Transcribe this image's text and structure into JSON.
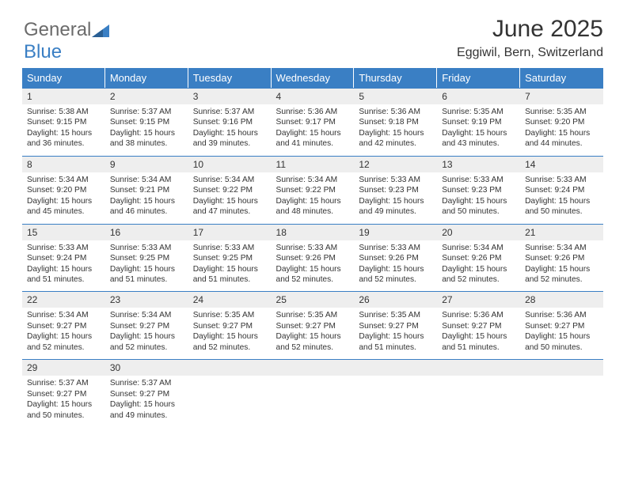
{
  "logo": {
    "text1": "General",
    "text2": "Blue"
  },
  "title": "June 2025",
  "subtitle": "Eggiwil, Bern, Switzerland",
  "colors": {
    "header_bg": "#3a7fc4",
    "header_text": "#ffffff",
    "daynum_bg": "#eeeeee",
    "border": "#3a7fc4",
    "body_text": "#333333",
    "logo_grey": "#6b6b6b"
  },
  "typography": {
    "title_fontsize": 30,
    "subtitle_fontsize": 16,
    "header_fontsize": 13,
    "daynum_fontsize": 12,
    "detail_fontsize": 10.2
  },
  "calendar": {
    "type": "table",
    "day_headers": [
      "Sunday",
      "Monday",
      "Tuesday",
      "Wednesday",
      "Thursday",
      "Friday",
      "Saturday"
    ],
    "weeks": [
      [
        {
          "n": "1",
          "sr": "5:38 AM",
          "ss": "9:15 PM",
          "dl": "15 hours and 36 minutes."
        },
        {
          "n": "2",
          "sr": "5:37 AM",
          "ss": "9:15 PM",
          "dl": "15 hours and 38 minutes."
        },
        {
          "n": "3",
          "sr": "5:37 AM",
          "ss": "9:16 PM",
          "dl": "15 hours and 39 minutes."
        },
        {
          "n": "4",
          "sr": "5:36 AM",
          "ss": "9:17 PM",
          "dl": "15 hours and 41 minutes."
        },
        {
          "n": "5",
          "sr": "5:36 AM",
          "ss": "9:18 PM",
          "dl": "15 hours and 42 minutes."
        },
        {
          "n": "6",
          "sr": "5:35 AM",
          "ss": "9:19 PM",
          "dl": "15 hours and 43 minutes."
        },
        {
          "n": "7",
          "sr": "5:35 AM",
          "ss": "9:20 PM",
          "dl": "15 hours and 44 minutes."
        }
      ],
      [
        {
          "n": "8",
          "sr": "5:34 AM",
          "ss": "9:20 PM",
          "dl": "15 hours and 45 minutes."
        },
        {
          "n": "9",
          "sr": "5:34 AM",
          "ss": "9:21 PM",
          "dl": "15 hours and 46 minutes."
        },
        {
          "n": "10",
          "sr": "5:34 AM",
          "ss": "9:22 PM",
          "dl": "15 hours and 47 minutes."
        },
        {
          "n": "11",
          "sr": "5:34 AM",
          "ss": "9:22 PM",
          "dl": "15 hours and 48 minutes."
        },
        {
          "n": "12",
          "sr": "5:33 AM",
          "ss": "9:23 PM",
          "dl": "15 hours and 49 minutes."
        },
        {
          "n": "13",
          "sr": "5:33 AM",
          "ss": "9:23 PM",
          "dl": "15 hours and 50 minutes."
        },
        {
          "n": "14",
          "sr": "5:33 AM",
          "ss": "9:24 PM",
          "dl": "15 hours and 50 minutes."
        }
      ],
      [
        {
          "n": "15",
          "sr": "5:33 AM",
          "ss": "9:24 PM",
          "dl": "15 hours and 51 minutes."
        },
        {
          "n": "16",
          "sr": "5:33 AM",
          "ss": "9:25 PM",
          "dl": "15 hours and 51 minutes."
        },
        {
          "n": "17",
          "sr": "5:33 AM",
          "ss": "9:25 PM",
          "dl": "15 hours and 51 minutes."
        },
        {
          "n": "18",
          "sr": "5:33 AM",
          "ss": "9:26 PM",
          "dl": "15 hours and 52 minutes."
        },
        {
          "n": "19",
          "sr": "5:33 AM",
          "ss": "9:26 PM",
          "dl": "15 hours and 52 minutes."
        },
        {
          "n": "20",
          "sr": "5:34 AM",
          "ss": "9:26 PM",
          "dl": "15 hours and 52 minutes."
        },
        {
          "n": "21",
          "sr": "5:34 AM",
          "ss": "9:26 PM",
          "dl": "15 hours and 52 minutes."
        }
      ],
      [
        {
          "n": "22",
          "sr": "5:34 AM",
          "ss": "9:27 PM",
          "dl": "15 hours and 52 minutes."
        },
        {
          "n": "23",
          "sr": "5:34 AM",
          "ss": "9:27 PM",
          "dl": "15 hours and 52 minutes."
        },
        {
          "n": "24",
          "sr": "5:35 AM",
          "ss": "9:27 PM",
          "dl": "15 hours and 52 minutes."
        },
        {
          "n": "25",
          "sr": "5:35 AM",
          "ss": "9:27 PM",
          "dl": "15 hours and 52 minutes."
        },
        {
          "n": "26",
          "sr": "5:35 AM",
          "ss": "9:27 PM",
          "dl": "15 hours and 51 minutes."
        },
        {
          "n": "27",
          "sr": "5:36 AM",
          "ss": "9:27 PM",
          "dl": "15 hours and 51 minutes."
        },
        {
          "n": "28",
          "sr": "5:36 AM",
          "ss": "9:27 PM",
          "dl": "15 hours and 50 minutes."
        }
      ],
      [
        {
          "n": "29",
          "sr": "5:37 AM",
          "ss": "9:27 PM",
          "dl": "15 hours and 50 minutes."
        },
        {
          "n": "30",
          "sr": "5:37 AM",
          "ss": "9:27 PM",
          "dl": "15 hours and 49 minutes."
        },
        null,
        null,
        null,
        null,
        null
      ]
    ]
  },
  "labels": {
    "sunrise": "Sunrise:",
    "sunset": "Sunset:",
    "daylight": "Daylight:"
  }
}
